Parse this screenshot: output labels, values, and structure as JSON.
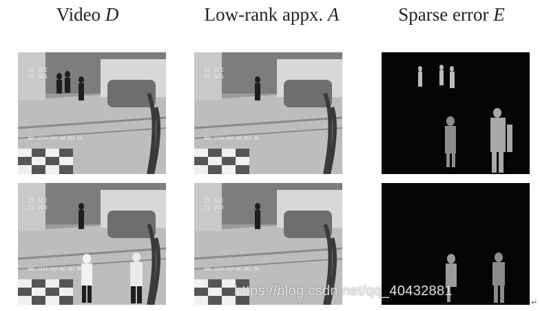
{
  "figure": {
    "columns": [
      {
        "label": "Video",
        "symbol": "D"
      },
      {
        "label": "Low-rank appx.",
        "symbol": "A"
      },
      {
        "label": "Sparse error",
        "symbol": "E"
      }
    ],
    "rows": [
      {
        "frame_text": [
          "2S 5CE",
          "2S 6C5",
          "ABC-1234-567 08 283 00"
        ]
      },
      {
        "frame_text": [
          "2S 5CE",
          "2S 6C5",
          "ABC-1234-567 08 283 00"
        ]
      }
    ]
  },
  "watermark": "https://blog.csdn.net/qq_40432881",
  "line_end_mark": "↵"
}
